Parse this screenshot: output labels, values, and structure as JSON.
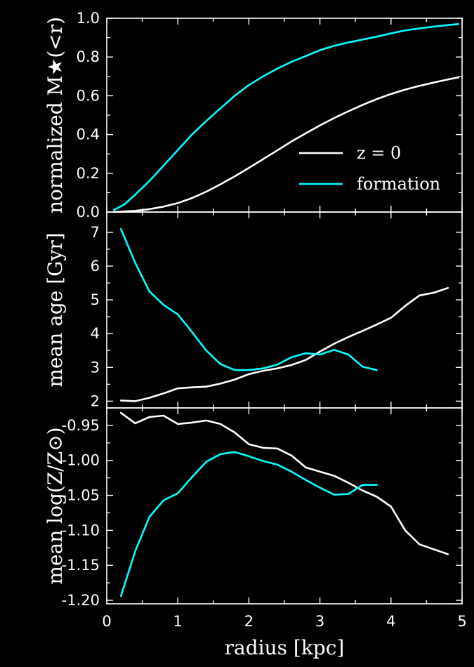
{
  "colors": {
    "background": "#000000",
    "axes": "#ffffff",
    "z0": "#ffffff",
    "formation": "#00ffff"
  },
  "chart_data": [
    {
      "type": "line",
      "ylabel": "normalized M★(<r)",
      "xlim": [
        0,
        5
      ],
      "ylim": [
        0,
        1
      ],
      "yticks": [
        "0.0",
        "0.2",
        "0.4",
        "0.6",
        "0.8",
        "1.0"
      ],
      "legend": {
        "placement": "lower-right",
        "entries": [
          "z = 0",
          "formation"
        ]
      },
      "series": [
        {
          "name": "z = 0",
          "color": "#ffffff",
          "x": [
            0.1,
            0.4,
            0.6,
            0.8,
            1.0,
            1.2,
            1.4,
            1.6,
            1.8,
            2.0,
            2.2,
            2.4,
            2.6,
            2.8,
            3.0,
            3.2,
            3.4,
            3.6,
            3.8,
            4.0,
            4.2,
            4.4,
            4.6,
            4.8,
            4.95
          ],
          "y": [
            0.0,
            0.006,
            0.015,
            0.028,
            0.046,
            0.072,
            0.105,
            0.143,
            0.184,
            0.228,
            0.273,
            0.318,
            0.364,
            0.406,
            0.447,
            0.485,
            0.52,
            0.553,
            0.583,
            0.609,
            0.632,
            0.651,
            0.668,
            0.684,
            0.695
          ]
        },
        {
          "name": "formation",
          "color": "#00ffff",
          "x": [
            0.1,
            0.25,
            0.4,
            0.6,
            0.8,
            1.0,
            1.2,
            1.4,
            1.6,
            1.8,
            2.0,
            2.2,
            2.4,
            2.6,
            2.8,
            3.0,
            3.2,
            3.4,
            3.6,
            3.8,
            4.0,
            4.2,
            4.4,
            4.6,
            4.8,
            4.95
          ],
          "y": [
            0.01,
            0.04,
            0.09,
            0.16,
            0.24,
            0.32,
            0.4,
            0.47,
            0.535,
            0.6,
            0.655,
            0.7,
            0.74,
            0.775,
            0.805,
            0.835,
            0.858,
            0.875,
            0.89,
            0.905,
            0.922,
            0.937,
            0.948,
            0.957,
            0.965,
            0.97
          ]
        }
      ]
    },
    {
      "type": "line",
      "ylabel": "mean age [Gyr]",
      "xlim": [
        0,
        5
      ],
      "ylim": [
        1.8,
        7.6
      ],
      "yticks": [
        "2",
        "3",
        "4",
        "5",
        "6",
        "7"
      ],
      "series": [
        {
          "name": "z = 0",
          "color": "#ffffff",
          "x": [
            0.2,
            0.4,
            0.6,
            0.8,
            1.0,
            1.2,
            1.4,
            1.6,
            1.8,
            2.0,
            2.2,
            2.4,
            2.6,
            2.8,
            3.0,
            3.2,
            3.4,
            3.6,
            3.8,
            4.0,
            4.2,
            4.4,
            4.6,
            4.8
          ],
          "y": [
            2.02,
            2.0,
            2.1,
            2.23,
            2.38,
            2.41,
            2.43,
            2.52,
            2.64,
            2.8,
            2.9,
            2.97,
            3.07,
            3.22,
            3.47,
            3.7,
            3.9,
            4.08,
            4.27,
            4.47,
            4.82,
            5.13,
            5.21,
            5.35
          ]
        },
        {
          "name": "formation",
          "color": "#00ffff",
          "x": [
            0.2,
            0.4,
            0.6,
            0.8,
            1.0,
            1.2,
            1.4,
            1.6,
            1.8,
            2.0,
            2.2,
            2.4,
            2.6,
            2.8,
            3.0,
            3.2,
            3.4,
            3.6,
            3.8
          ],
          "y": [
            7.1,
            6.1,
            5.25,
            4.85,
            4.57,
            4.05,
            3.5,
            3.1,
            2.92,
            2.92,
            2.97,
            3.08,
            3.3,
            3.42,
            3.38,
            3.52,
            3.38,
            3.02,
            2.92
          ]
        }
      ]
    },
    {
      "type": "line",
      "ylabel": "mean log(Z/Z⊙)",
      "xlabel": "radius [kpc]",
      "xlim": [
        0,
        5
      ],
      "ylim": [
        -1.205,
        -0.925
      ],
      "xticks": [
        "0",
        "1",
        "2",
        "3",
        "4",
        "5"
      ],
      "yticks": [
        "-0.95",
        "-1.00",
        "-1.05",
        "-1.10",
        "-1.15",
        "-1.20"
      ],
      "series": [
        {
          "name": "z = 0",
          "color": "#ffffff",
          "x": [
            0.2,
            0.4,
            0.6,
            0.8,
            1.0,
            1.2,
            1.4,
            1.6,
            1.8,
            2.0,
            2.2,
            2.4,
            2.6,
            2.8,
            3.0,
            3.2,
            3.4,
            3.6,
            3.8,
            4.0,
            4.2,
            4.4,
            4.6,
            4.8
          ],
          "y": [
            -0.932,
            -0.947,
            -0.938,
            -0.936,
            -0.948,
            -0.946,
            -0.943,
            -0.948,
            -0.96,
            -0.977,
            -0.982,
            -0.983,
            -0.993,
            -1.01,
            -1.016,
            -1.022,
            -1.032,
            -1.043,
            -1.052,
            -1.066,
            -1.1,
            -1.12,
            -1.127,
            -1.134
          ]
        },
        {
          "name": "formation",
          "color": "#00ffff",
          "x": [
            0.2,
            0.4,
            0.6,
            0.8,
            1.0,
            1.2,
            1.4,
            1.6,
            1.8,
            2.0,
            2.2,
            2.4,
            2.6,
            2.8,
            3.0,
            3.2,
            3.4,
            3.6,
            3.8
          ],
          "y": [
            -1.194,
            -1.13,
            -1.081,
            -1.057,
            -1.047,
            -1.024,
            -1.002,
            -0.991,
            -0.988,
            -0.994,
            -1.001,
            -1.006,
            -1.016,
            -1.028,
            -1.039,
            -1.049,
            -1.048,
            -1.035,
            -1.035
          ]
        }
      ]
    }
  ]
}
